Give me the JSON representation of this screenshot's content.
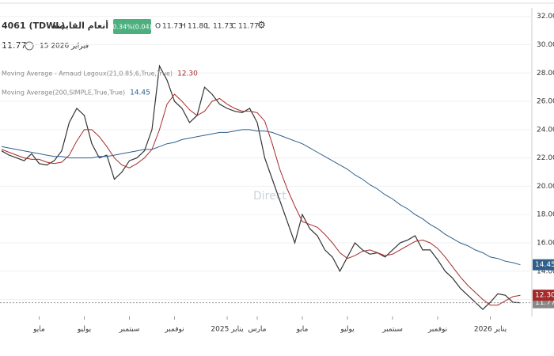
{
  "header": {
    "symbol": "4061 (TDWL)",
    "name": "أنعام القابضة",
    "change": "0.34%(0.04)",
    "ohlc": [
      {
        "key": "O",
        "value": "11.73"
      },
      {
        "key": "H",
        "value": "11.80"
      },
      {
        "key": "L",
        "value": "11.73"
      },
      {
        "key": "C",
        "value": "11.77"
      }
    ],
    "last": "11.77",
    "date": "15 فبراير 2026",
    "watermark": "Direct"
  },
  "chart_data": {
    "type": "line",
    "categories": [
      null,
      null,
      null,
      null,
      null,
      "مايو",
      null,
      null,
      null,
      null,
      null,
      "يوليو",
      null,
      null,
      null,
      null,
      null,
      "سبتمبر",
      null,
      null,
      null,
      null,
      null,
      "نوفمبر",
      null,
      null,
      null,
      null,
      null,
      null,
      "يناير 2025",
      null,
      null,
      null,
      "مارس",
      null,
      null,
      null,
      null,
      null,
      "مايو",
      null,
      null,
      null,
      null,
      null,
      "يوليو",
      null,
      null,
      null,
      null,
      null,
      "سبتمبر",
      null,
      null,
      null,
      null,
      null,
      "نوفمبر",
      null,
      null,
      null,
      null,
      null,
      null,
      "يناير 2026",
      null,
      null,
      null,
      null
    ],
    "series": [
      {
        "name": "TDWL",
        "color": "#333333",
        "values": [
          22.5,
          22.2,
          22,
          21.8,
          22.3,
          21.6,
          21.5,
          21.8,
          22.5,
          24.5,
          25.5,
          25,
          23,
          22,
          22.2,
          20.5,
          21,
          21.8,
          22,
          22.5,
          24,
          28.5,
          27.5,
          26,
          25.5,
          24.5,
          25,
          27,
          26.5,
          25.8,
          25.5,
          25.3,
          25.2,
          25.5,
          24.5,
          22,
          20.5,
          19,
          17.5,
          16,
          18,
          17,
          16.5,
          15.5,
          15,
          14,
          15,
          16,
          15.5,
          15.2,
          15.3,
          15,
          15.5,
          16,
          16.2,
          16.5,
          15.5,
          15.5,
          14.8,
          14,
          13.5,
          12.8,
          12.3,
          11.8,
          11.3,
          11.8,
          12.4,
          12.3,
          11.8,
          11.77
        ],
        "last_label": {
          "value": 11.77,
          "label": "11.77"
        }
      },
      {
        "name": "Moving Average - Arnaud Legoux(21,0.85,6,True,True)",
        "color": "#a52a2a",
        "values": [
          22.6,
          22.4,
          22.2,
          22,
          21.9,
          21.9,
          21.7,
          21.6,
          21.7,
          22.2,
          23.2,
          24,
          24,
          23.5,
          22.8,
          22,
          21.5,
          21.3,
          21.6,
          22,
          22.6,
          24,
          25.8,
          26.5,
          26,
          25.4,
          25,
          25.3,
          26,
          26.2,
          25.8,
          25.5,
          25.3,
          25.3,
          25.2,
          24.6,
          23,
          21.2,
          19.8,
          18.6,
          17.5,
          17.3,
          17.1,
          16.6,
          16,
          15.3,
          14.9,
          15.1,
          15.4,
          15.5,
          15.3,
          15.1,
          15.2,
          15.5,
          15.8,
          16.1,
          16.2,
          16,
          15.6,
          15,
          14.3,
          13.6,
          13,
          12.5,
          12,
          11.6,
          11.6,
          11.9,
          12.2,
          12.3
        ],
        "last_label": {
          "value": 12.3,
          "label": "12.30"
        }
      },
      {
        "name": "Moving Average(200,SIMPLE,True,True)",
        "color": "#2f5f8a",
        "values": [
          22.8,
          22.7,
          22.6,
          22.5,
          22.4,
          22.3,
          22.2,
          22.1,
          22.1,
          22.0,
          22.0,
          22.0,
          22.0,
          22.1,
          22.1,
          22.2,
          22.3,
          22.4,
          22.5,
          22.6,
          22.6,
          22.8,
          23.0,
          23.1,
          23.3,
          23.4,
          23.5,
          23.6,
          23.7,
          23.8,
          23.8,
          23.9,
          24.0,
          24.0,
          23.9,
          23.9,
          23.8,
          23.6,
          23.4,
          23.2,
          23.0,
          22.7,
          22.4,
          22.1,
          21.8,
          21.5,
          21.2,
          20.8,
          20.5,
          20.1,
          19.8,
          19.4,
          19.1,
          18.7,
          18.4,
          18.0,
          17.7,
          17.3,
          17.0,
          16.6,
          16.3,
          16.0,
          15.8,
          15.5,
          15.3,
          15.0,
          14.9,
          14.7,
          14.6,
          14.45
        ],
        "last_label": {
          "value": 14.45,
          "label": "14.45"
        }
      }
    ],
    "ylim": [
      10.8,
      32.6
    ],
    "yticks": [
      {
        "value": 12,
        "label": "12.00"
      },
      {
        "value": 14,
        "label": "14.00"
      },
      {
        "value": 16,
        "label": "16.00"
      },
      {
        "value": 18,
        "label": "18.00"
      },
      {
        "value": 20,
        "label": "20.00"
      },
      {
        "value": 22,
        "label": "22.00"
      },
      {
        "value": 24,
        "label": "24.00"
      },
      {
        "value": 26,
        "label": "26.00"
      },
      {
        "value": 28,
        "label": "28.00"
      },
      {
        "value": 30,
        "label": "30.00"
      },
      {
        "value": 32,
        "label": "32.00"
      }
    ],
    "grid": true
  }
}
